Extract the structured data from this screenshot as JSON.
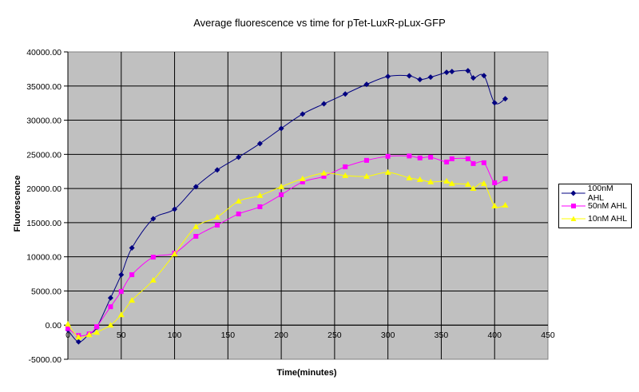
{
  "chart_data": {
    "type": "line",
    "title": "Average fluorescence vs time for pTet-LuxR-pLux-GFP",
    "xlabel": "Time(minutes)",
    "ylabel": "Fluorescence",
    "xlim": [
      0,
      450
    ],
    "ylim": [
      -5000,
      40000
    ],
    "x_ticks": [
      "0",
      "50",
      "100",
      "150",
      "200",
      "250",
      "300",
      "350",
      "400",
      "450"
    ],
    "y_ticks": [
      "-5000.00",
      "0.00",
      "5000.00",
      "10000.00",
      "15000.00",
      "20000.00",
      "25000.00",
      "30000.00",
      "35000.00",
      "40000.00"
    ],
    "grid": true,
    "legend_position": "right",
    "x": [
      0,
      10,
      20,
      27,
      40,
      50,
      60,
      80,
      100,
      120,
      140,
      160,
      180,
      200,
      220,
      240,
      260,
      280,
      300,
      320,
      330,
      340,
      355,
      360,
      375,
      380,
      390,
      400,
      410
    ],
    "series": [
      {
        "name": "100nM AHL",
        "color": "#000080",
        "marker": "diamond",
        "values": [
          -700,
          -2450,
          -1300,
          -350,
          3980,
          7380,
          11300,
          15570,
          16980,
          20260,
          22720,
          24590,
          26580,
          28800,
          30900,
          32400,
          33840,
          35250,
          36400,
          36500,
          35950,
          36300,
          37000,
          37120,
          37240,
          36180,
          36530,
          32550,
          33140
        ]
      },
      {
        "name": "50nM AHL",
        "color": "#ff00ff",
        "marker": "square",
        "values": [
          -500,
          -1520,
          -1290,
          -230,
          2690,
          4920,
          7380,
          9950,
          10540,
          13000,
          14640,
          16280,
          17330,
          19090,
          20960,
          21780,
          23180,
          24120,
          24710,
          24760,
          24470,
          24590,
          23880,
          24350,
          24350,
          23650,
          23770,
          20840,
          21430
        ]
      },
      {
        "name": "10nM AHL",
        "color": "#ffff00",
        "marker": "triangle",
        "values": [
          150,
          -1750,
          -1400,
          -1050,
          0,
          1520,
          3630,
          6580,
          10420,
          14400,
          15810,
          18150,
          18970,
          20260,
          21430,
          22250,
          21900,
          21780,
          22370,
          21550,
          21310,
          20960,
          21080,
          20730,
          20610,
          20020,
          20730,
          17450,
          17560
        ]
      }
    ]
  },
  "colors": {
    "plot_background": "#c0c0c0",
    "gridline": "#000000"
  }
}
